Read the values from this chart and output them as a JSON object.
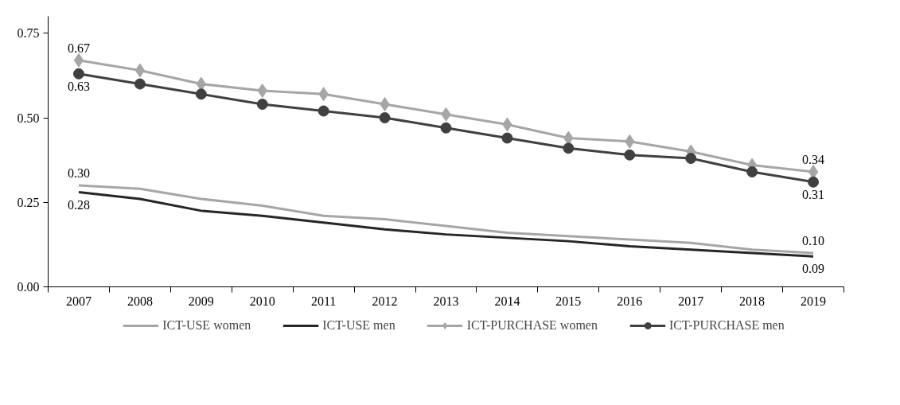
{
  "chart_data": {
    "type": "line",
    "categories": [
      "2007",
      "2008",
      "2009",
      "2010",
      "2011",
      "2012",
      "2013",
      "2014",
      "2015",
      "2016",
      "2017",
      "2018",
      "2019"
    ],
    "series": [
      {
        "name": "ICT-USE women",
        "color": "#a6a6a6",
        "marker": "none",
        "values": [
          0.3,
          0.29,
          0.26,
          0.24,
          0.21,
          0.2,
          0.18,
          0.16,
          0.15,
          0.14,
          0.13,
          0.11,
          0.1
        ],
        "value_labels": [
          "0.30",
          null,
          null,
          null,
          null,
          null,
          null,
          null,
          null,
          null,
          null,
          null,
          "0.10"
        ]
      },
      {
        "name": "ICT-USE men",
        "color": "#262626",
        "marker": "none",
        "values": [
          0.28,
          0.26,
          0.225,
          0.21,
          0.19,
          0.17,
          0.155,
          0.145,
          0.135,
          0.12,
          0.11,
          0.1,
          0.09
        ],
        "value_labels": [
          "0.28",
          null,
          null,
          null,
          null,
          null,
          null,
          null,
          null,
          null,
          null,
          null,
          "0.09"
        ]
      },
      {
        "name": "ICT-PURCHASE women",
        "color": "#a6a6a6",
        "marker": "diamond",
        "values": [
          0.67,
          0.64,
          0.6,
          0.58,
          0.57,
          0.54,
          0.51,
          0.48,
          0.44,
          0.43,
          0.4,
          0.36,
          0.34
        ],
        "value_labels": [
          "0.67",
          null,
          null,
          null,
          null,
          null,
          null,
          null,
          null,
          null,
          null,
          null,
          "0.34"
        ]
      },
      {
        "name": "ICT-PURCHASE men",
        "color": "#404040",
        "marker": "circle",
        "values": [
          0.63,
          0.6,
          0.57,
          0.54,
          0.52,
          0.5,
          0.47,
          0.44,
          0.41,
          0.39,
          0.38,
          0.34,
          0.31
        ],
        "value_labels": [
          "0.63",
          null,
          null,
          null,
          null,
          null,
          null,
          null,
          null,
          null,
          null,
          null,
          "0.31"
        ]
      }
    ],
    "ylim": [
      0,
      0.8
    ],
    "yticks": [
      {
        "value": 0,
        "label": "0.00"
      },
      {
        "value": 0.25,
        "label": "0.25"
      },
      {
        "value": 0.5,
        "label": "0.50"
      },
      {
        "value": 0.75,
        "label": "0.75"
      }
    ],
    "grid": false,
    "legend": "bottom"
  }
}
